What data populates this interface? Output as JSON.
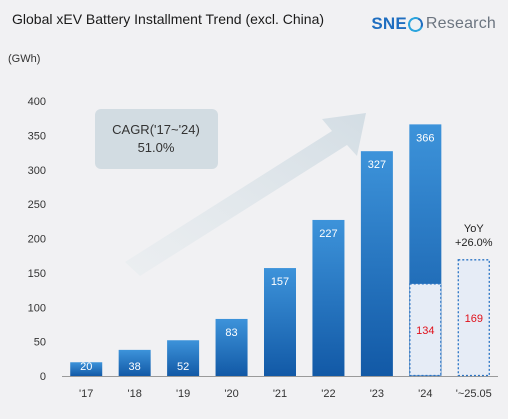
{
  "header": {
    "title": "Global xEV Battery Installment Trend (excl. China)",
    "logo_brand": "SNE",
    "logo_suffix": "Research"
  },
  "chart_data": {
    "type": "bar",
    "title": "Global xEV Battery Installment Trend (excl. China)",
    "unit": "(GWh)",
    "categories": [
      "'17",
      "'18",
      "'19",
      "'20",
      "'21",
      "'22",
      "'23",
      "'24",
      "'~25.05"
    ],
    "values": [
      20,
      38,
      52,
      83,
      157,
      227,
      327,
      366,
      null
    ],
    "value_labels": [
      "20",
      "38",
      "52",
      "83",
      "157",
      "227",
      "327",
      "366",
      ""
    ],
    "partial": {
      "categories": [
        "'24",
        "'~25.05"
      ],
      "values": [
        134,
        169
      ],
      "labels": [
        "134",
        "169"
      ]
    },
    "ylim": [
      0,
      400
    ],
    "yticks": [
      0,
      50,
      100,
      150,
      200,
      250,
      300,
      350,
      400
    ],
    "grid": false,
    "annotations": {
      "cagr_line1": "CAGR('17~'24)",
      "cagr_line2": "51.0%",
      "yoy_line1": "YoY",
      "yoy_line2": "+26.0%"
    },
    "colors": {
      "bar_top": "#3d93da",
      "bar_bottom": "#1259a6",
      "partial_fill": "#e6ecf6",
      "partial_border": "#2b74c4",
      "partial_label": "#e0101a",
      "arrow": "#d3dde4"
    }
  }
}
